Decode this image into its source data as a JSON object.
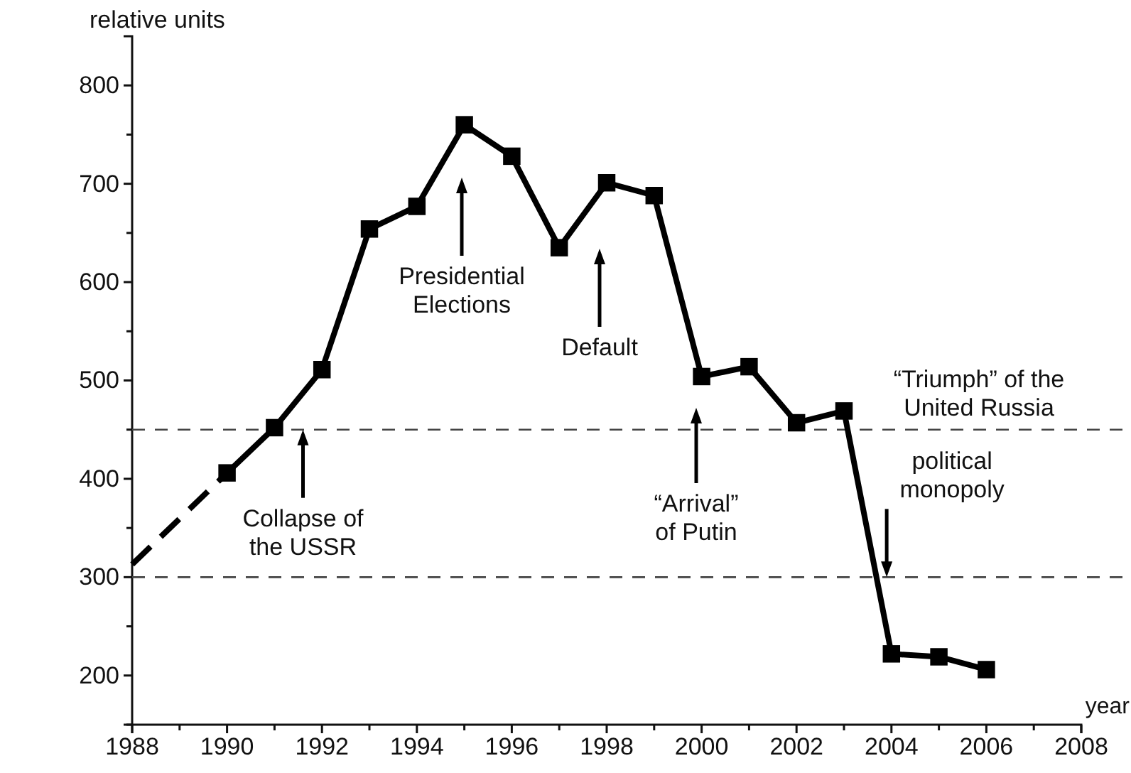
{
  "chart_data": {
    "type": "line",
    "xlabel": "year",
    "ylabel": "relative units",
    "xlim": [
      1988,
      2008
    ],
    "ylim": [
      150,
      850
    ],
    "xticks": [
      1988,
      {
        "value": 1989,
        "label": null
      },
      1990,
      {
        "value": 1991,
        "label": null
      },
      1992,
      {
        "value": 1993,
        "label": null
      },
      1994,
      {
        "value": 1995,
        "label": null
      },
      1996,
      {
        "value": 1997,
        "label": null
      },
      1998,
      {
        "value": 1999,
        "label": null
      },
      2000,
      {
        "value": 2001,
        "label": null
      },
      2002,
      {
        "value": 2003,
        "label": null
      },
      2004,
      {
        "value": 2005,
        "label": null
      },
      2006,
      {
        "value": 2007,
        "label": null
      },
      2008
    ],
    "yticks": [
      {
        "value": 150,
        "label": null
      },
      200,
      {
        "value": 250,
        "label": null
      },
      300,
      {
        "value": 350,
        "label": null
      },
      400,
      {
        "value": 450,
        "label": null
      },
      500,
      {
        "value": 550,
        "label": null
      },
      600,
      {
        "value": 650,
        "label": null
      },
      700,
      {
        "value": 750,
        "label": null
      },
      800
    ],
    "series": [
      {
        "color": "#000000",
        "marker": "square",
        "line_style": "solid",
        "x": [
          1990,
          1991,
          1992,
          1993,
          1994,
          1995,
          1996,
          1997,
          1998,
          1999,
          2000,
          2001,
          2002,
          2003,
          2004,
          2005,
          2006
        ],
        "values": [
          406,
          452,
          511,
          654,
          677,
          760,
          728,
          635,
          701,
          688,
          504,
          514,
          457,
          469,
          222,
          219,
          206
        ]
      },
      {
        "color": "#000000",
        "marker": "none",
        "line_style": "dashed",
        "x": [
          1988,
          1990
        ],
        "values": [
          313,
          406
        ]
      }
    ],
    "ref_lines": [
      {
        "axis": "y",
        "value": 450,
        "label": "“Triumph” of the\nUnited Russia",
        "color": "#444444",
        "line_style": "dashed"
      },
      {
        "axis": "y",
        "value": 300,
        "label": null,
        "color": "#444444",
        "line_style": "dashed"
      }
    ],
    "annotations": [
      {
        "text": "Collapse of\nthe USSR",
        "x": 1991.6,
        "y": 450
      },
      "Presidential\nElections",
      "Default",
      "“Arrival”\nof Putin",
      {
        "text": "political\nmonopoly",
        "x": 2003.9,
        "y": 300
      }
    ],
    "grid": false
  }
}
